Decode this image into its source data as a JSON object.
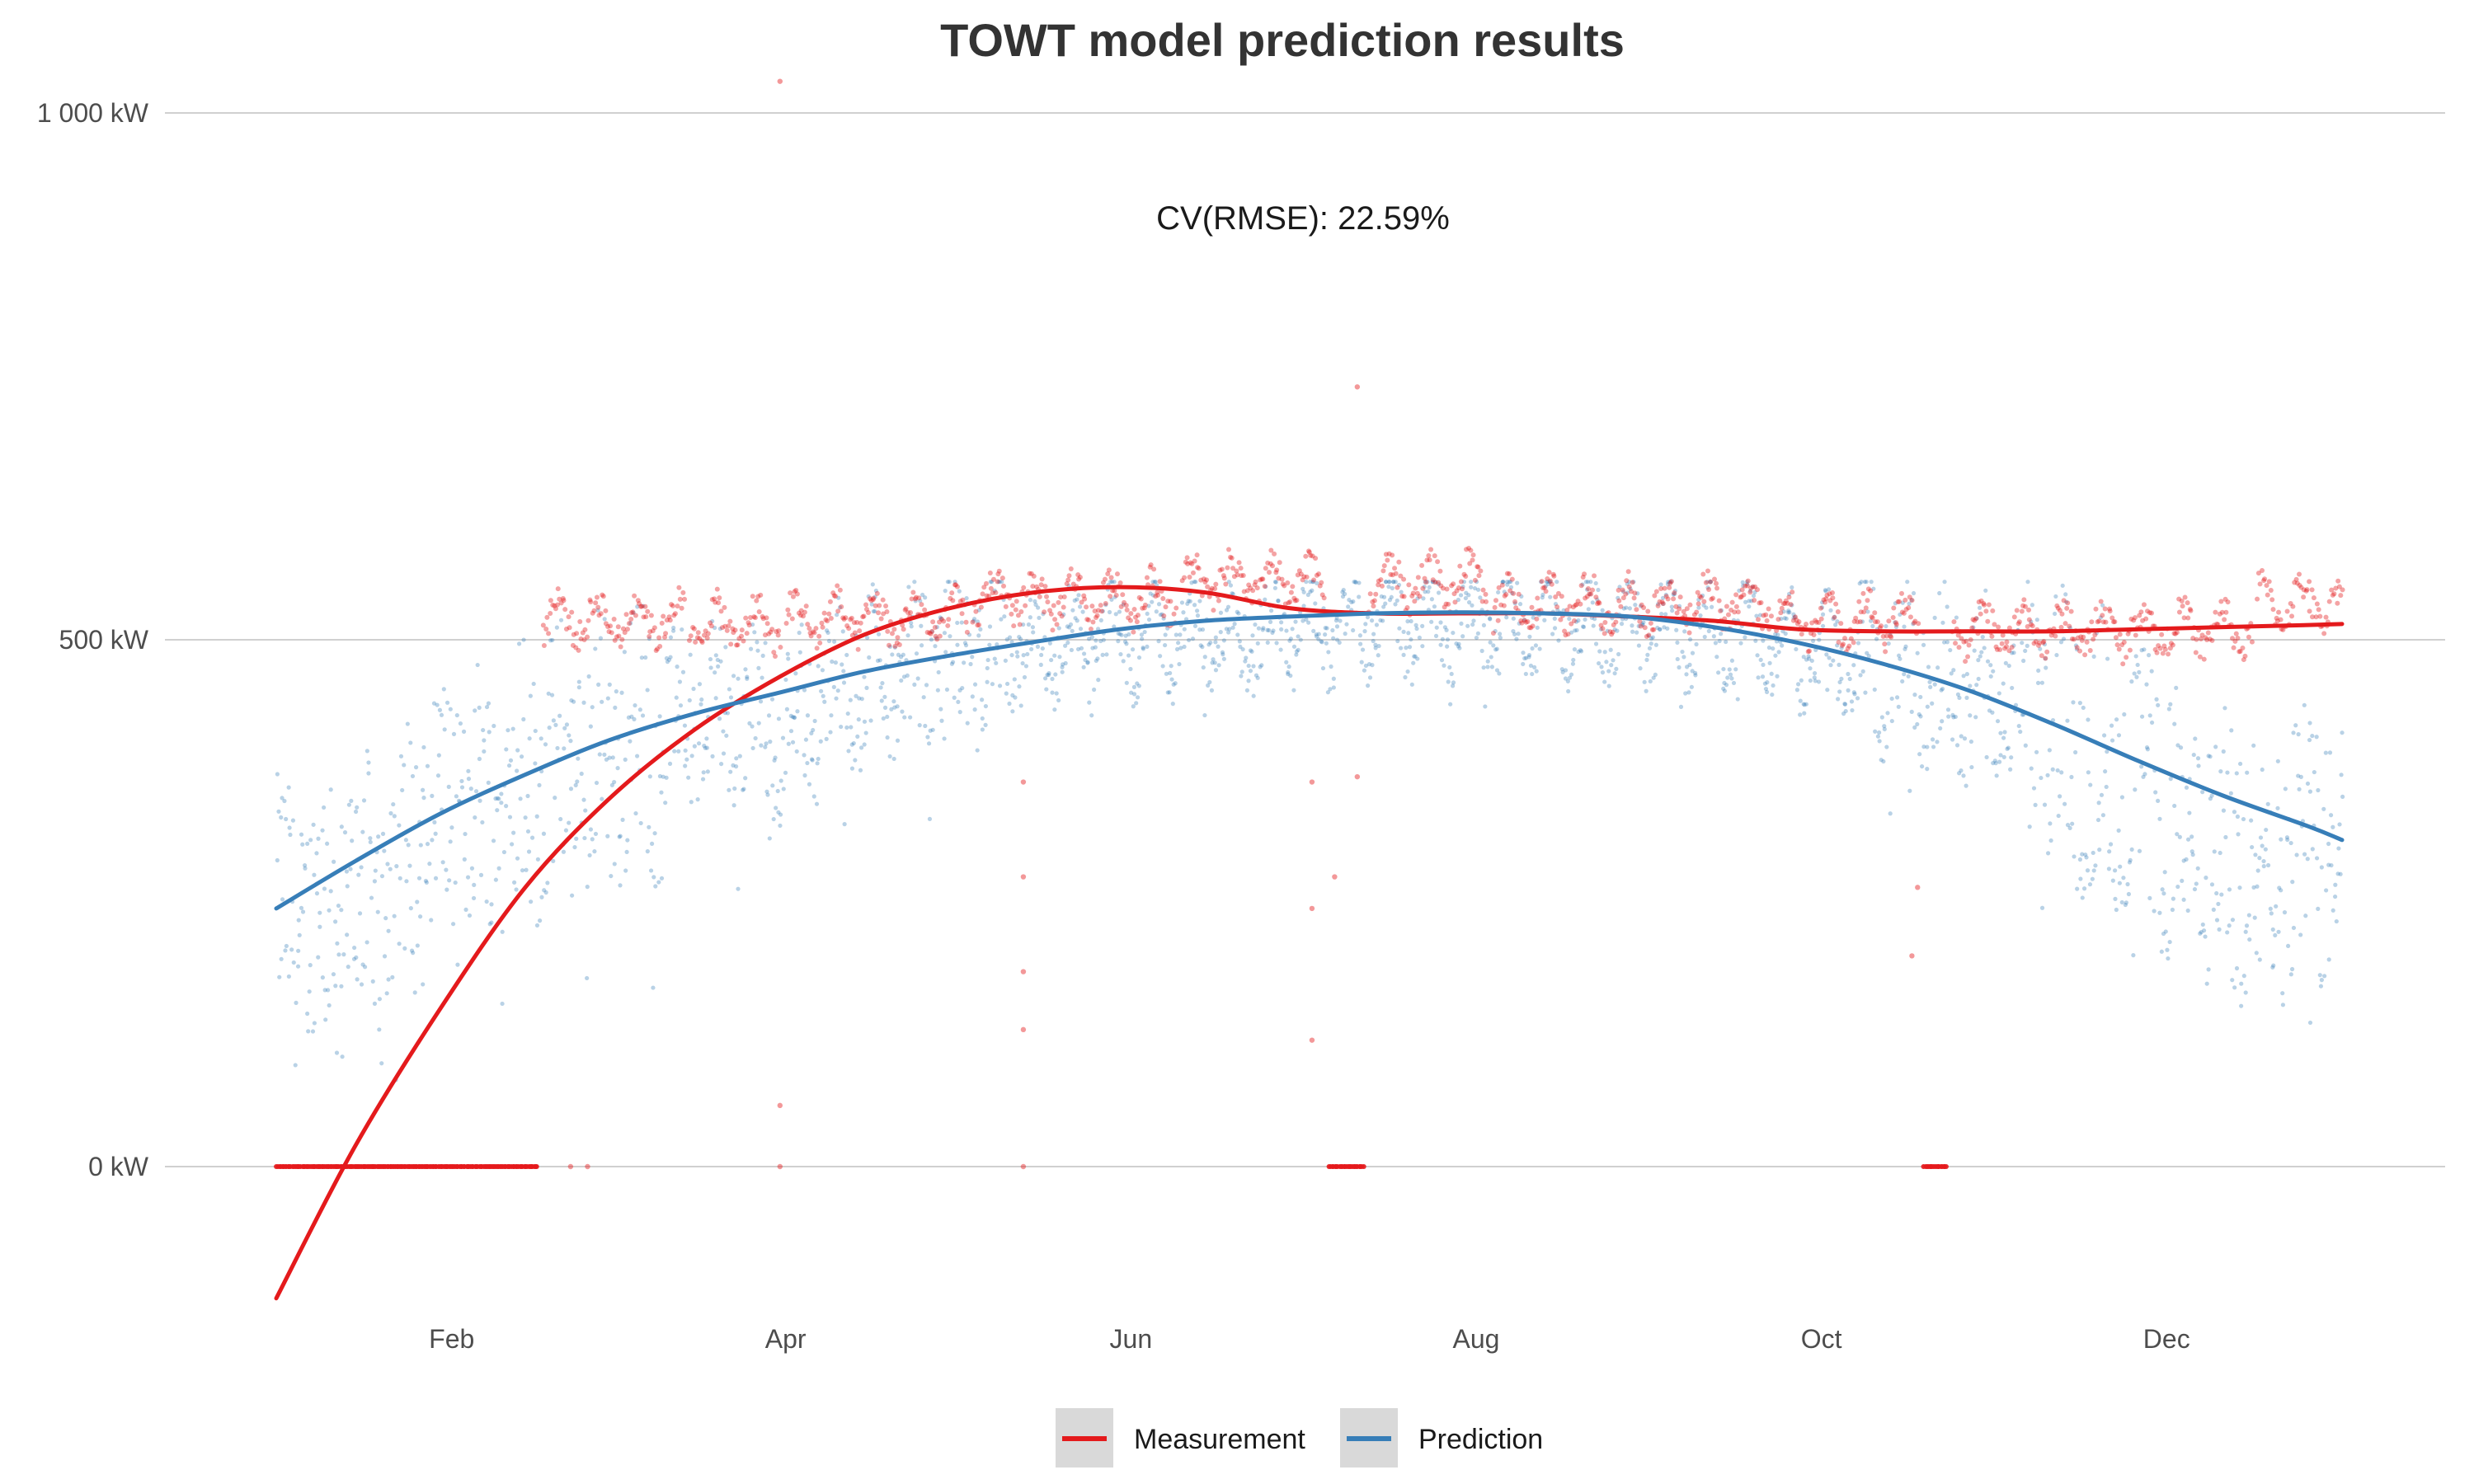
{
  "chart_data": {
    "type": "scatter",
    "title": "TOWT model prediction results",
    "annotation": "CV(RMSE): 22.59%",
    "xlabel": "",
    "ylabel": "",
    "x_unit": "day of year",
    "xlim": [
      1,
      366
    ],
    "ylim": [
      -150,
      1020
    ],
    "x_ticks": [
      {
        "label": "Feb",
        "x": 32
      },
      {
        "label": "Apr",
        "x": 91
      },
      {
        "label": "Jun",
        "x": 152
      },
      {
        "label": "Aug",
        "x": 213
      },
      {
        "label": "Oct",
        "x": 274
      },
      {
        "label": "Dec",
        "x": 335
      }
    ],
    "y_ticks": [
      {
        "label": "0 kW",
        "y": 0
      },
      {
        "label": "500 kW",
        "y": 500
      },
      {
        "label": "1 000 kW",
        "y": 1000
      }
    ],
    "grid": "horizontal",
    "legend_position": "bottom",
    "colors": {
      "measurement": "#e41a1c",
      "prediction": "#377eb8"
    },
    "series": [
      {
        "name": "Measurement",
        "kind": "points",
        "color": "#e41a1c",
        "segments": [
          {
            "from": 1,
            "to": 47,
            "value": 0
          },
          {
            "from": 48,
            "to": 73,
            "value": 520
          },
          {
            "from": 74,
            "to": 90,
            "value": 515
          },
          {
            "from": 91,
            "to": 123,
            "value": 520
          },
          {
            "from": 124,
            "to": 160,
            "value": 540
          },
          {
            "from": 161,
            "to": 186,
            "value": 555
          },
          {
            "from": 187,
            "to": 193,
            "value": 0
          },
          {
            "from": 194,
            "to": 215,
            "value": 555
          },
          {
            "from": 216,
            "to": 265,
            "value": 535
          },
          {
            "from": 266,
            "to": 291,
            "value": 520
          },
          {
            "from": 292,
            "to": 296,
            "value": 0
          },
          {
            "from": 297,
            "to": 350,
            "value": 510
          },
          {
            "from": 351,
            "to": 366,
            "value": 535
          }
        ],
        "outliers": [
          {
            "x": 53,
            "y": 0
          },
          {
            "x": 56,
            "y": 0
          },
          {
            "x": 90,
            "y": 1030
          },
          {
            "x": 90,
            "y": 58
          },
          {
            "x": 90,
            "y": 0
          },
          {
            "x": 133,
            "y": 365
          },
          {
            "x": 133,
            "y": 275
          },
          {
            "x": 133,
            "y": 185
          },
          {
            "x": 133,
            "y": 130
          },
          {
            "x": 133,
            "y": 0
          },
          {
            "x": 184,
            "y": 365
          },
          {
            "x": 184,
            "y": 245
          },
          {
            "x": 184,
            "y": 120
          },
          {
            "x": 188,
            "y": 275
          },
          {
            "x": 192,
            "y": 740
          },
          {
            "x": 192,
            "y": 370
          },
          {
            "x": 291,
            "y": 265
          },
          {
            "x": 290,
            "y": 200
          }
        ]
      },
      {
        "name": "Prediction",
        "kind": "points",
        "color": "#377eb8",
        "daily_base": [
          {
            "x": 1,
            "y": 230
          },
          {
            "x": 15,
            "y": 250
          },
          {
            "x": 30,
            "y": 330
          },
          {
            "x": 45,
            "y": 370
          },
          {
            "x": 60,
            "y": 390
          },
          {
            "x": 75,
            "y": 430
          },
          {
            "x": 90,
            "y": 420
          },
          {
            "x": 105,
            "y": 470
          },
          {
            "x": 120,
            "y": 480
          },
          {
            "x": 135,
            "y": 495
          },
          {
            "x": 150,
            "y": 500
          },
          {
            "x": 165,
            "y": 505
          },
          {
            "x": 180,
            "y": 510
          },
          {
            "x": 195,
            "y": 515
          },
          {
            "x": 210,
            "y": 520
          },
          {
            "x": 225,
            "y": 515
          },
          {
            "x": 240,
            "y": 515
          },
          {
            "x": 255,
            "y": 510
          },
          {
            "x": 270,
            "y": 495
          },
          {
            "x": 285,
            "y": 475
          },
          {
            "x": 300,
            "y": 455
          },
          {
            "x": 315,
            "y": 420
          },
          {
            "x": 330,
            "y": 360
          },
          {
            "x": 345,
            "y": 290
          },
          {
            "x": 355,
            "y": 300
          },
          {
            "x": 366,
            "y": 320
          }
        ]
      },
      {
        "name": "Measurement",
        "kind": "trend",
        "color": "#e41a1c",
        "x": [
          1,
          15,
          30,
          45,
          60,
          75,
          90,
          105,
          120,
          135,
          150,
          165,
          180,
          195,
          210,
          225,
          240,
          255,
          270,
          285,
          300,
          315,
          330,
          345,
          360,
          366
        ],
        "y": [
          -125,
          20,
          150,
          265,
          350,
          415,
          465,
          505,
          530,
          545,
          550,
          545,
          530,
          525,
          525,
          525,
          522,
          518,
          510,
          508,
          508,
          508,
          510,
          512,
          514,
          515
        ]
      },
      {
        "name": "Prediction",
        "kind": "trend",
        "color": "#377eb8",
        "x": [
          1,
          15,
          30,
          45,
          60,
          75,
          90,
          105,
          120,
          135,
          150,
          165,
          180,
          195,
          210,
          225,
          240,
          255,
          270,
          285,
          300,
          315,
          330,
          345,
          360,
          366
        ],
        "y": [
          245,
          290,
          335,
          372,
          405,
          430,
          450,
          470,
          485,
          498,
          510,
          518,
          522,
          525,
          526,
          525,
          522,
          512,
          497,
          477,
          452,
          420,
          385,
          352,
          323,
          310
        ]
      }
    ],
    "legend": [
      {
        "label": "Measurement",
        "color": "#e41a1c"
      },
      {
        "label": "Prediction",
        "color": "#377eb8"
      }
    ]
  }
}
